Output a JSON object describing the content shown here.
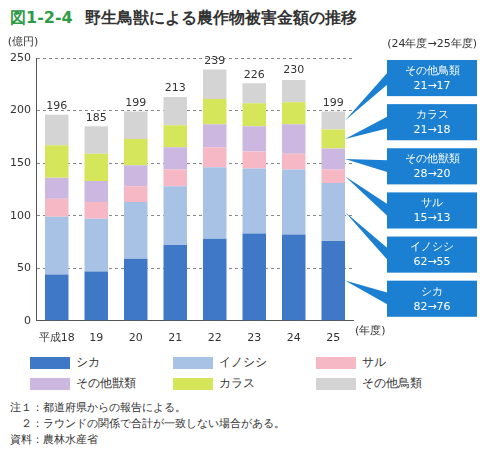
{
  "chart_data": {
    "type": "bar",
    "figure_number": "図1-2-4",
    "title": "野生鳥獣による農作物被害金額の推移",
    "y_label": "(億円)",
    "x_label": "(年度)",
    "callout_title": "(24年度→25年度)",
    "categories": [
      "平成18",
      "19",
      "20",
      "21",
      "22",
      "23",
      "24",
      "25"
    ],
    "series": [
      {
        "name": "シカ",
        "color": "#3f78c6",
        "values": [
          44,
          47,
          59,
          72,
          78,
          83,
          82,
          76
        ]
      },
      {
        "name": "イノシシ",
        "color": "#a8c2e6",
        "values": [
          55,
          50,
          54,
          56,
          68,
          62,
          62,
          55
        ]
      },
      {
        "name": "サル",
        "color": "#f6b8c4",
        "values": [
          17,
          16,
          15,
          16,
          19,
          16,
          15,
          13
        ]
      },
      {
        "name": "その他獣類",
        "color": "#cbb7e0",
        "values": [
          20,
          20,
          20,
          21,
          22,
          24,
          28,
          20
        ]
      },
      {
        "name": "カラス",
        "color": "#d5e65a",
        "values": [
          31,
          26,
          25,
          21,
          24,
          22,
          21,
          18
        ]
      },
      {
        "name": "その他鳥類",
        "color": "#d4d4d4",
        "values": [
          29,
          26,
          26,
          27,
          28,
          19,
          21,
          17
        ]
      }
    ],
    "totals": [
      196,
      185,
      199,
      213,
      239,
      226,
      230,
      199
    ],
    "callouts": [
      {
        "series": "その他鳥類",
        "text": "21→17"
      },
      {
        "series": "カラス",
        "text": "21→18"
      },
      {
        "series": "その他獣類",
        "text": "28→20"
      },
      {
        "series": "サル",
        "text": "15→13"
      },
      {
        "series": "イノシシ",
        "text": "62→55"
      },
      {
        "series": "シカ",
        "text": "82→76"
      }
    ],
    "callout_color": "#1b80d2",
    "stacked": true,
    "ylim": [
      0,
      250
    ],
    "yticks": [
      0,
      50,
      100,
      150,
      200,
      250
    ],
    "grid": true,
    "legend": "bottom",
    "notes": [
      "注１：都道府県からの報告による。",
      "　２：ラウンドの関係で合計が一致しない場合がある。",
      "資料：農林水産省"
    ]
  }
}
